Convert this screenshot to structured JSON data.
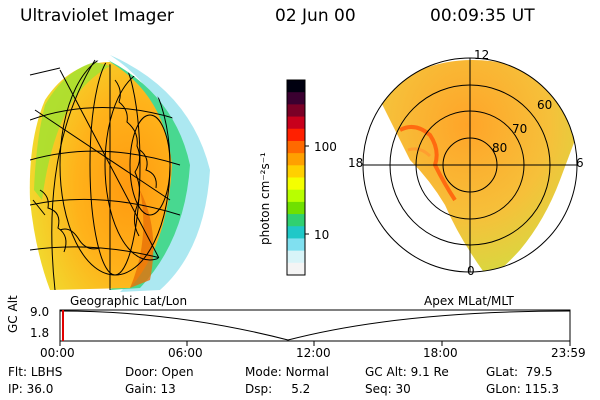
{
  "header": {
    "instrument": "Ultraviolet Imager",
    "date": "02 Jun 00",
    "time": "00:09:35 UT"
  },
  "left_panel": {
    "caption": "Geographic Lat/Lon"
  },
  "right_panel": {
    "caption": "Apex MLat/MLT",
    "mlt_labels": {
      "top": "12",
      "left": "18",
      "right": "6",
      "bottom": "0"
    },
    "lat_labels": [
      "60",
      "70",
      "80"
    ]
  },
  "colorbar": {
    "label": "photon cm⁻²s⁻¹",
    "ticks": [
      "100",
      "10"
    ],
    "colors": [
      "#000010",
      "#3a0030",
      "#7a0026",
      "#c8001c",
      "#ff2000",
      "#ff6a00",
      "#ffa000",
      "#ffd000",
      "#f4ff00",
      "#b8ff00",
      "#70e000",
      "#30d070",
      "#20c8c8",
      "#80e0f0",
      "#d8f4f8",
      "#f4f4f4"
    ]
  },
  "altitude_track": {
    "ylabel": "GC Alt",
    "y_ticks": [
      "9.0",
      "1.8"
    ],
    "x_ticks": [
      "00:00",
      "06:00",
      "12:00",
      "18:00",
      "23:59"
    ]
  },
  "status": {
    "row1": [
      {
        "label": "Flt:",
        "value": "LBHS"
      },
      {
        "label": "Door:",
        "value": "Open"
      },
      {
        "label": "Mode:",
        "value": "Normal"
      },
      {
        "label": "GC Alt:",
        "value": "9.1 Re"
      },
      {
        "label": "GLat:",
        "value": "79.5"
      }
    ],
    "row2": [
      {
        "label": "IP:",
        "value": "36.0"
      },
      {
        "label": "Gain:",
        "value": "13"
      },
      {
        "label": "Dsp:",
        "value": "5.2"
      },
      {
        "label": "Seq:",
        "value": "30"
      },
      {
        "label": "GLon:",
        "value": "115.3"
      }
    ]
  }
}
